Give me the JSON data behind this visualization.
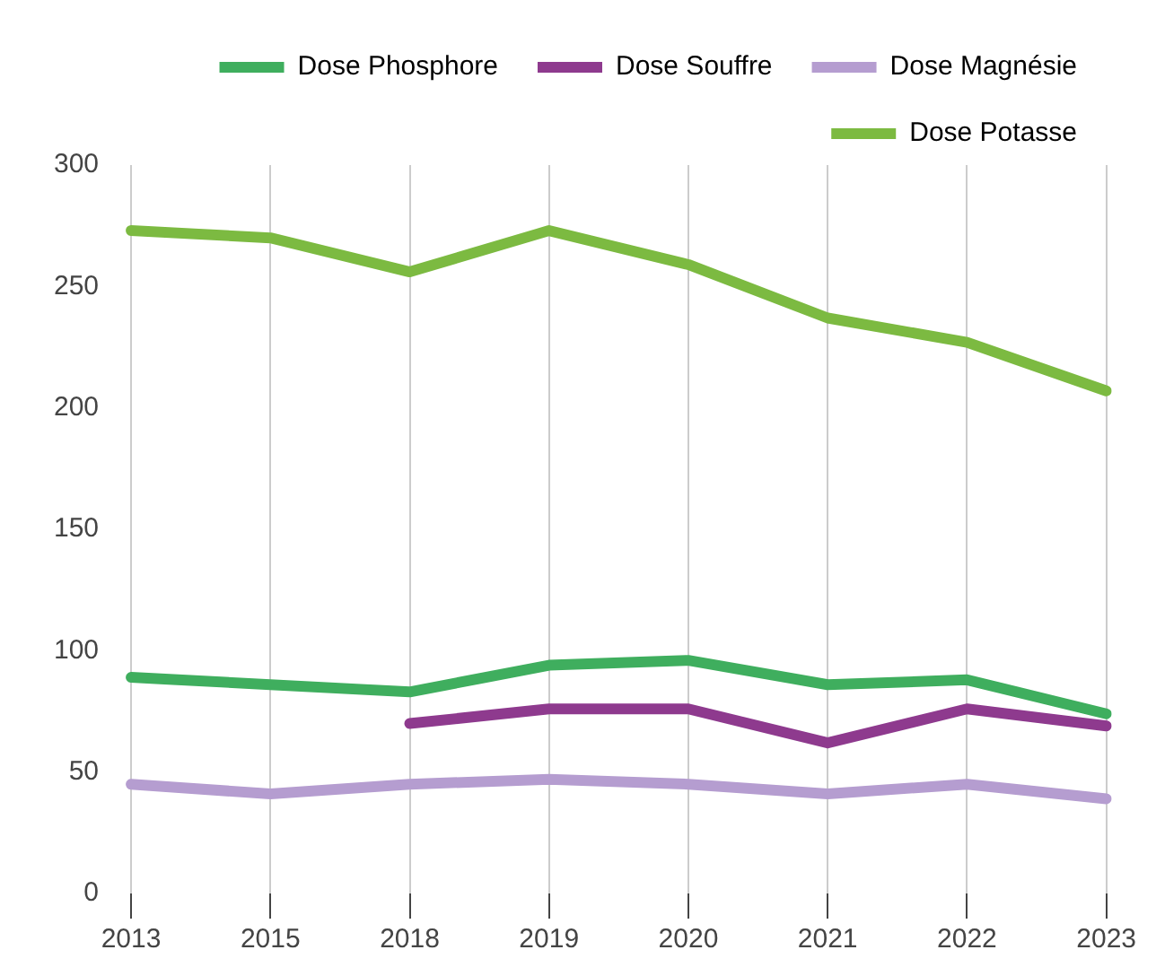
{
  "chart_data": {
    "type": "line",
    "categories": [
      "2013",
      "2015",
      "2018",
      "2019",
      "2020",
      "2021",
      "2022",
      "2023"
    ],
    "series": [
      {
        "name": "Dose Phosphore",
        "color": "#3fae5e",
        "values": [
          89,
          86,
          83,
          94,
          96,
          86,
          88,
          74
        ]
      },
      {
        "name": "Dose Souffre",
        "color": "#8e3a8e",
        "values": [
          null,
          null,
          70,
          76,
          76,
          62,
          76,
          69
        ]
      },
      {
        "name": "Dose Magnésie",
        "color": "#b59dd0",
        "values": [
          45,
          41,
          45,
          47,
          45,
          41,
          45,
          39
        ]
      },
      {
        "name": "Dose Potasse",
        "color": "#7cba41",
        "values": [
          273,
          270,
          256,
          273,
          259,
          237,
          227,
          207
        ]
      }
    ],
    "ylim": [
      0,
      300
    ],
    "yticks": [
      0,
      50,
      100,
      150,
      200,
      250,
      300
    ],
    "grid": "x",
    "legend": "top",
    "marker": "none",
    "line_style": "solid"
  }
}
